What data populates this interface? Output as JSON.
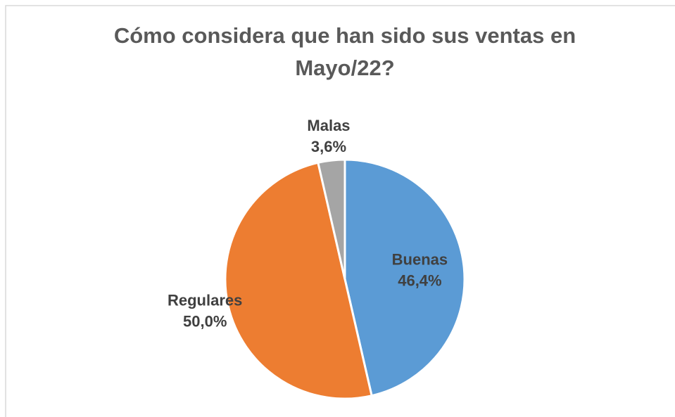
{
  "chart_data": {
    "type": "pie",
    "title": "Cómo considera que han sido sus ventas en Mayo/22?",
    "categories": [
      "Buenas",
      "Regulares",
      "Malas"
    ],
    "values": [
      46.4,
      50.0,
      3.6
    ],
    "value_labels": [
      "46,4%",
      "50,0%",
      "3,6%"
    ],
    "colors": [
      "#5b9bd5",
      "#ed7d31",
      "#a5a5a5"
    ]
  }
}
